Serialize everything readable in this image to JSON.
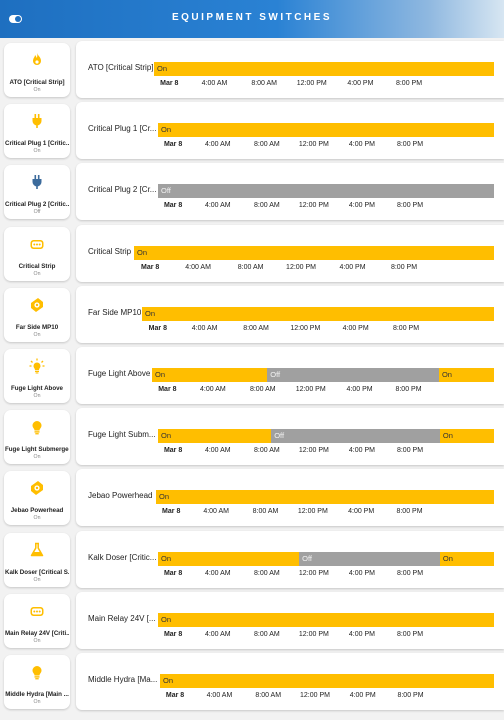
{
  "header": {
    "title": "EQUIPMENT SWITCHES"
  },
  "colors": {
    "on": "#ffbe00",
    "off": "#a0a0a0",
    "header_blue": "#1e6fc0",
    "icon_yellow": "#ffbe00",
    "icon_blue": "#3c6b9c"
  },
  "time_axis": {
    "ticks": [
      "Mar 8",
      "4:00 AM",
      "8:00 AM",
      "12:00 PM",
      "4:00 PM",
      "8:00 PM"
    ]
  },
  "devices": [
    {
      "card_name": "ATO [Critical Strip]",
      "card_state": "On",
      "icon": "fire-icon",
      "icon_color": "#ffbe00",
      "panel_label": "ATO [Critical Strip]",
      "segments": [
        {
          "state": "on",
          "label": "On",
          "start": 0,
          "end": 1
        }
      ]
    },
    {
      "card_name": "Critical Plug 1 [Critic...",
      "card_state": "On",
      "icon": "power-plug-icon",
      "icon_color": "#ffbe00",
      "panel_label": "Critical Plug 1 [Cr...",
      "segments": [
        {
          "state": "on",
          "label": "On",
          "start": 0,
          "end": 1
        }
      ]
    },
    {
      "card_name": "Critical Plug 2 [Critic...",
      "card_state": "Off",
      "icon": "power-plug-icon",
      "icon_color": "#3c6b9c",
      "panel_label": "Critical Plug 2 [Cr...",
      "segments": [
        {
          "state": "off",
          "label": "Off",
          "start": 0,
          "end": 1
        }
      ]
    },
    {
      "card_name": "Critical Strip",
      "card_state": "On",
      "icon": "power-strip-icon",
      "icon_color": "#ffbe00",
      "panel_label": "Critical Strip",
      "segments": [
        {
          "state": "on",
          "label": "On",
          "start": 0,
          "end": 1
        }
      ]
    },
    {
      "card_name": "Far Side MP10",
      "card_state": "On",
      "icon": "pump-icon",
      "icon_color": "#ffbe00",
      "panel_label": "Far Side MP10",
      "segments": [
        {
          "state": "on",
          "label": "On",
          "start": 0,
          "end": 1
        }
      ]
    },
    {
      "card_name": "Fuge Light Above",
      "card_state": "On",
      "icon": "sun-lamp-icon",
      "icon_color": "#ffbe00",
      "panel_label": "Fuge Light Above",
      "segments": [
        {
          "state": "on",
          "label": "On",
          "start": 0,
          "end": 0.337
        },
        {
          "state": "off",
          "label": "Off",
          "start": 0.337,
          "end": 0.839
        },
        {
          "state": "on",
          "label": "On",
          "start": 0.839,
          "end": 1
        }
      ]
    },
    {
      "card_name": "Fuge Light Submerged",
      "card_state": "On",
      "icon": "lightbulb-icon",
      "icon_color": "#ffbe00",
      "panel_label": "Fuge Light Subm...",
      "segments": [
        {
          "state": "on",
          "label": "On",
          "start": 0,
          "end": 0.337
        },
        {
          "state": "off",
          "label": "Off",
          "start": 0.337,
          "end": 0.839
        },
        {
          "state": "on",
          "label": "On",
          "start": 0.839,
          "end": 1
        }
      ]
    },
    {
      "card_name": "Jebao Powerhead",
      "card_state": "On",
      "icon": "pump-icon",
      "icon_color": "#ffbe00",
      "panel_label": "Jebao Powerhead",
      "segments": [
        {
          "state": "on",
          "label": "On",
          "start": 0,
          "end": 1
        }
      ]
    },
    {
      "card_name": "Kalk Doser [Critical S...",
      "card_state": "On",
      "icon": "flask-icon",
      "icon_color": "#ffbe00",
      "panel_label": "Kalk Doser [Critic...",
      "segments": [
        {
          "state": "on",
          "label": "On",
          "start": 0,
          "end": 0.42
        },
        {
          "state": "off",
          "label": "Off",
          "start": 0.42,
          "end": 0.839
        },
        {
          "state": "on",
          "label": "On",
          "start": 0.839,
          "end": 1
        }
      ]
    },
    {
      "card_name": "Main Relay 24V [Criti...",
      "card_state": "On",
      "icon": "power-strip-icon",
      "icon_color": "#ffbe00",
      "panel_label": "Main Relay 24V [...",
      "segments": [
        {
          "state": "on",
          "label": "On",
          "start": 0,
          "end": 1
        }
      ]
    },
    {
      "card_name": "Middle Hydra [Main ...",
      "card_state": "On",
      "icon": "lightbulb-icon",
      "icon_color": "#ffbe00",
      "panel_label": "Middle Hydra [Ma...",
      "segments": [
        {
          "state": "on",
          "label": "On",
          "start": 0,
          "end": 1
        }
      ]
    }
  ]
}
